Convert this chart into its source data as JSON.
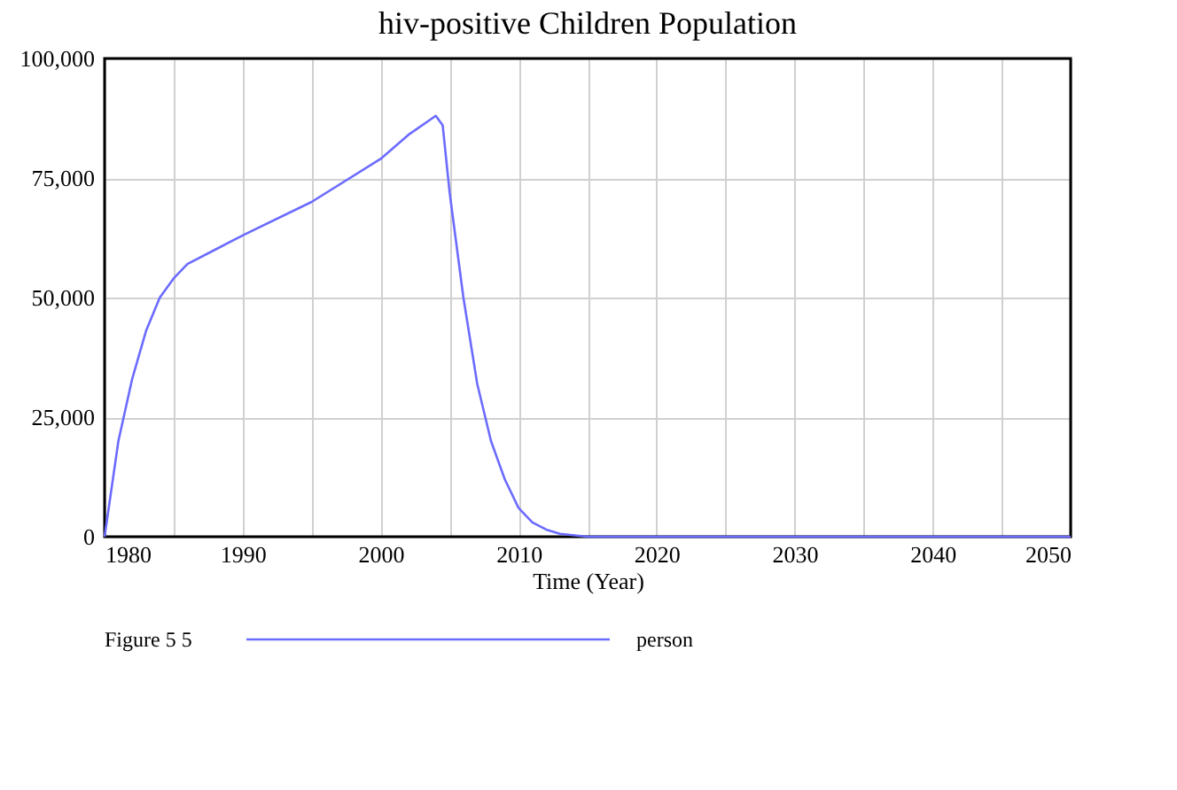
{
  "chart_data": {
    "type": "line",
    "title": "hiv-positive Children Population",
    "xlabel": "Time (Year)",
    "x": [
      1980,
      1981,
      1982,
      1983,
      1984,
      1985,
      1986,
      1988,
      1990,
      1995,
      2000,
      2002,
      2004,
      2004.5,
      2005,
      2006,
      2007,
      2008,
      2009,
      2010,
      2011,
      2012,
      2013,
      2015,
      2050
    ],
    "series": [
      {
        "name": "Figure 5 5",
        "color": "#6b6bff",
        "values": [
          0,
          20000,
          33000,
          43000,
          50000,
          54000,
          57000,
          60000,
          63000,
          70000,
          79000,
          84000,
          88000,
          86000,
          72000,
          50000,
          32000,
          20000,
          12000,
          6000,
          3000,
          1500,
          600,
          0,
          0
        ]
      }
    ],
    "annotations": [
      "person"
    ],
    "xlim": [
      1980,
      2050
    ],
    "xticks": [
      1980,
      {
        "value": 1985,
        "label": null
      },
      1990,
      {
        "value": 1995,
        "label": null
      },
      2000,
      {
        "value": 2005,
        "label": null
      },
      2010,
      {
        "value": 2015,
        "label": null
      },
      2020,
      {
        "value": 2025,
        "label": null
      },
      2030,
      {
        "value": 2035,
        "label": null
      },
      2040,
      {
        "value": 2045,
        "label": null
      },
      2050
    ],
    "ylim": [
      0,
      100000
    ],
    "yticks": [
      0,
      {
        "value": 25000,
        "label": "25,000"
      },
      {
        "value": 50000,
        "label": "50,000"
      },
      {
        "value": 75000,
        "label": "75,000"
      },
      {
        "value": 100000,
        "label": "100,000"
      }
    ],
    "grid": true,
    "legend": "bottom",
    "line_style": "solid",
    "marker": "none"
  }
}
